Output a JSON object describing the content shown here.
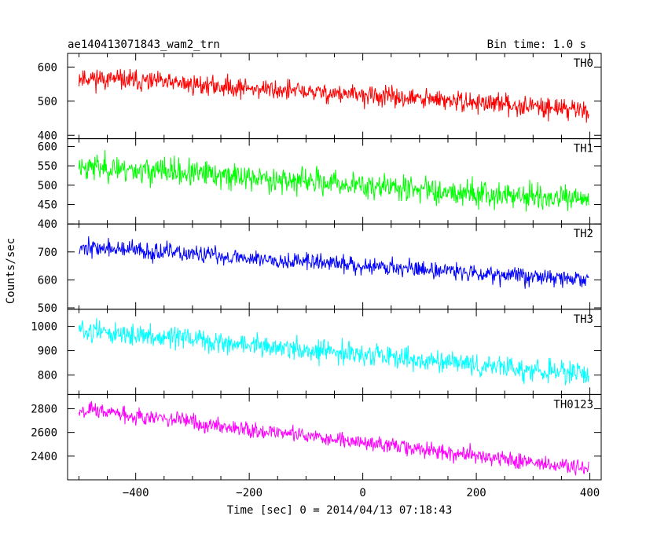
{
  "chart_data": {
    "type": "line",
    "title": "ae140413071843_wam2_trn",
    "subtitle": "Bin time: 1.0 s",
    "xlabel": "Time [sec] 0 = 2014/04/13 07:18:43",
    "ylabel": "Counts/sec",
    "xlim": [
      -520,
      420
    ],
    "x_ticks": [
      -400,
      -200,
      0,
      200,
      400
    ],
    "x_start": -500,
    "x_end": 398,
    "grid": false,
    "panels": [
      {
        "name": "TH0",
        "color": "#ff0000",
        "ylim": [
          390,
          640
        ],
        "y_ticks": [
          400,
          500,
          600
        ],
        "trend": [
          570,
          475
        ],
        "noise": 28,
        "seed": 11
      },
      {
        "name": "TH1",
        "color": "#00ff00",
        "ylim": [
          400,
          620
        ],
        "y_ticks": [
          400,
          450,
          500,
          550,
          600
        ],
        "trend": [
          550,
          460
        ],
        "noise": 32,
        "seed": 23
      },
      {
        "name": "TH2",
        "color": "#0000ff",
        "ylim": [
          495,
          800
        ],
        "y_ticks": [
          500,
          600,
          700
        ],
        "trend": [
          718,
          600
        ],
        "noise": 30,
        "seed": 37
      },
      {
        "name": "TH3",
        "color": "#00ffff",
        "ylim": [
          720,
          1070
        ],
        "y_ticks": [
          800,
          900,
          1000
        ],
        "trend": [
          985,
          800
        ],
        "noise": 42,
        "seed": 51
      },
      {
        "name": "TH0123",
        "color": "#ff00ff",
        "ylim": [
          2200,
          2920
        ],
        "y_ticks": [
          2400,
          2600,
          2800
        ],
        "trend": [
          2800,
          2290
        ],
        "noise": 65,
        "seed": 67
      }
    ]
  }
}
